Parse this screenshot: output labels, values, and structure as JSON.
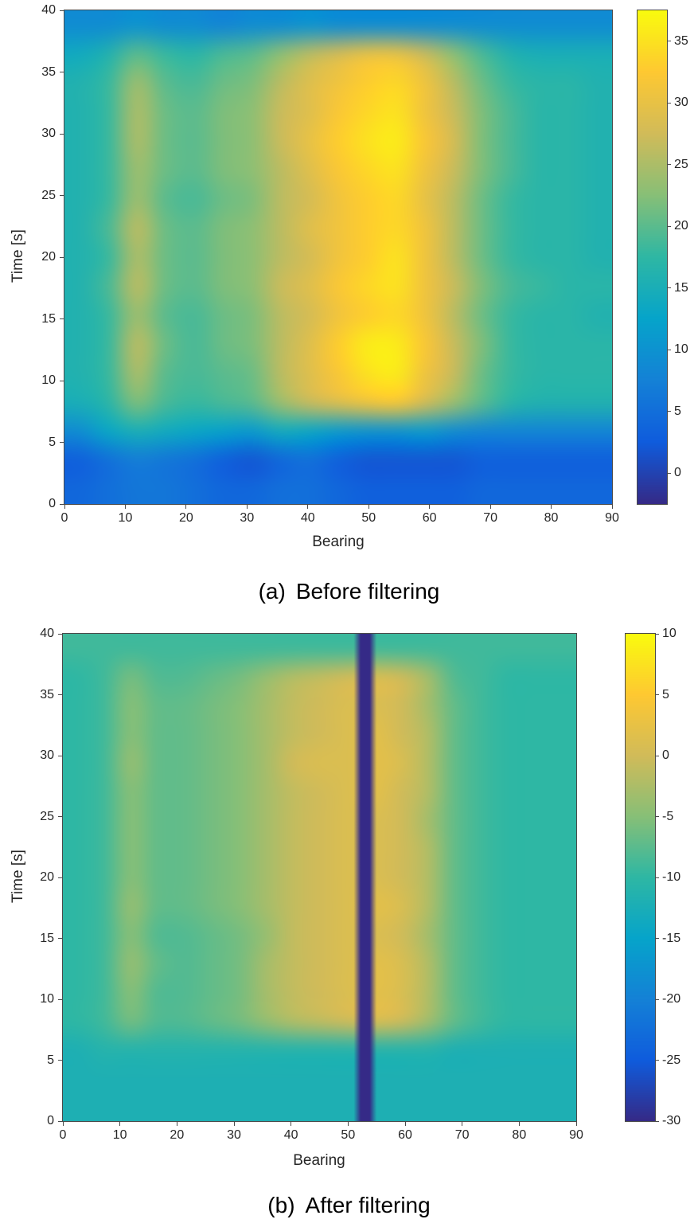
{
  "figure": {
    "captions": [
      {
        "tag": "(a)",
        "text": "Before filtering"
      },
      {
        "tag": "(b)",
        "text": "After filtering"
      }
    ]
  },
  "colormap": {
    "name": "parula",
    "stops": [
      "#352a87",
      "#0f5cdd",
      "#1481d6",
      "#06a4ca",
      "#2eb7a4",
      "#87bf77",
      "#d1bb59",
      "#fec832",
      "#f9fb0e"
    ]
  },
  "chart_data": [
    {
      "type": "heatmap",
      "title": "",
      "xlabel": "Bearing",
      "ylabel": "Time [s]",
      "x_range": [
        0,
        90
      ],
      "y_range": [
        0,
        40
      ],
      "x_ticks": [
        0,
        10,
        20,
        30,
        40,
        50,
        60,
        70,
        80,
        90
      ],
      "y_ticks": [
        0,
        5,
        10,
        15,
        20,
        25,
        30,
        35,
        40
      ],
      "clim": [
        -2.5,
        37.5
      ],
      "colorbar_ticks": [
        0,
        5,
        10,
        15,
        20,
        25,
        30,
        35
      ],
      "x": [
        0,
        5,
        10,
        15,
        20,
        25,
        30,
        35,
        40,
        45,
        50,
        55,
        60,
        65,
        70,
        75,
        80,
        85,
        90
      ],
      "y": [
        0,
        2.5,
        5,
        7.5,
        10,
        12.5,
        15,
        17.5,
        20,
        22.5,
        25,
        27.5,
        30,
        32.5,
        35,
        37.5,
        40
      ],
      "values": [
        [
          4,
          5,
          6,
          6,
          5,
          4,
          4,
          5,
          5,
          4,
          3,
          3,
          3,
          3,
          4,
          4,
          4,
          4,
          4
        ],
        [
          3,
          5,
          7,
          6,
          5,
          3,
          2,
          4,
          5,
          3,
          2,
          2,
          2,
          2,
          3,
          3,
          3,
          3,
          3
        ],
        [
          9,
          13,
          15,
          14,
          13,
          12,
          11,
          14,
          13,
          11,
          10,
          10,
          11,
          9,
          8,
          8,
          8,
          8,
          8
        ],
        [
          15,
          17,
          22,
          19,
          18,
          19,
          20,
          24,
          27,
          29,
          31,
          32,
          28,
          24,
          20,
          17,
          16,
          16,
          16
        ],
        [
          16,
          18,
          25,
          20,
          19,
          20,
          21,
          26,
          29,
          32,
          35,
          36,
          31,
          27,
          21,
          18,
          17,
          17,
          17
        ],
        [
          16,
          18,
          26,
          21,
          19,
          21,
          22,
          26,
          29,
          33,
          36,
          36,
          32,
          27,
          22,
          18,
          17,
          17,
          17
        ],
        [
          16,
          18,
          24,
          20,
          19,
          21,
          22,
          26,
          28,
          31,
          33,
          34,
          31,
          26,
          21,
          18,
          17,
          17,
          16
        ],
        [
          16,
          19,
          26,
          21,
          20,
          22,
          23,
          27,
          29,
          32,
          34,
          35,
          31,
          27,
          22,
          19,
          18,
          17,
          17
        ],
        [
          16,
          18,
          25,
          21,
          20,
          22,
          23,
          26,
          28,
          31,
          33,
          35,
          31,
          26,
          21,
          18,
          17,
          17,
          16
        ],
        [
          16,
          19,
          26,
          21,
          20,
          22,
          23,
          26,
          29,
          31,
          33,
          34,
          31,
          26,
          21,
          18,
          17,
          17,
          16
        ],
        [
          16,
          18,
          24,
          20,
          19,
          21,
          22,
          26,
          28,
          31,
          33,
          34,
          30,
          26,
          21,
          18,
          17,
          17,
          16
        ],
        [
          16,
          18,
          24,
          21,
          20,
          22,
          23,
          26,
          29,
          32,
          34,
          35,
          31,
          27,
          22,
          19,
          17,
          17,
          16
        ],
        [
          16,
          18,
          25,
          21,
          20,
          22,
          23,
          27,
          30,
          33,
          35,
          36,
          32,
          28,
          22,
          19,
          17,
          17,
          16
        ],
        [
          16,
          18,
          25,
          21,
          20,
          22,
          23,
          27,
          29,
          32,
          34,
          35,
          31,
          27,
          22,
          19,
          17,
          17,
          16
        ],
        [
          16,
          18,
          24,
          20,
          19,
          21,
          22,
          26,
          29,
          31,
          33,
          34,
          31,
          26,
          21,
          18,
          17,
          17,
          16
        ],
        [
          14,
          16,
          20,
          18,
          17,
          19,
          20,
          23,
          26,
          28,
          30,
          30,
          27,
          23,
          19,
          16,
          15,
          15,
          15
        ],
        [
          9,
          9,
          10,
          9,
          9,
          8,
          9,
          9,
          10,
          9,
          9,
          9,
          9,
          9,
          9,
          9,
          9,
          9,
          9
        ]
      ],
      "description": "Bearing-time intensity map before filtering: strong yellow source band near bearing 45-60 from t=7s to t=37s, secondary streak near bearing 11, dark blue low-level band below t=5s and above t=38s."
    },
    {
      "type": "heatmap",
      "title": "",
      "xlabel": "Bearing",
      "ylabel": "Time [s]",
      "x_range": [
        0,
        90
      ],
      "y_range": [
        0,
        40
      ],
      "x_ticks": [
        0,
        10,
        20,
        30,
        40,
        50,
        60,
        70,
        80,
        90
      ],
      "y_ticks": [
        0,
        5,
        10,
        15,
        20,
        25,
        30,
        35,
        40
      ],
      "clim": [
        -30,
        10
      ],
      "colorbar_ticks": [
        -30,
        -25,
        -20,
        -15,
        -10,
        -5,
        0,
        5,
        10
      ],
      "x": [
        0,
        5,
        10,
        15,
        20,
        25,
        30,
        35,
        40,
        45,
        50,
        55,
        60,
        65,
        70,
        75,
        80,
        85,
        90
      ],
      "y": [
        0,
        2.5,
        5,
        7.5,
        10,
        12.5,
        15,
        17.5,
        20,
        22.5,
        25,
        27.5,
        30,
        32.5,
        35,
        37.5,
        40
      ],
      "values": [
        [
          -12,
          -12,
          -12,
          -12,
          -12,
          -12,
          -12,
          -12,
          -12,
          -12,
          -12,
          -12,
          -12,
          -12,
          -12,
          -12,
          -12,
          -12,
          -12
        ],
        [
          -12,
          -12,
          -12,
          -12,
          -12,
          -12,
          -12,
          -12,
          -12,
          -12,
          -12,
          -12,
          -12,
          -12,
          -12,
          -12,
          -12,
          -12,
          -12
        ],
        [
          -12,
          -11,
          -11,
          -11,
          -11,
          -11,
          -11,
          -11,
          -11,
          -11,
          -11,
          -11,
          -11,
          -11,
          -12,
          -12,
          -12,
          -12,
          -12
        ],
        [
          -10,
          -9,
          -6,
          -8,
          -8,
          -7,
          -6,
          -4,
          -2,
          -1,
          0,
          1,
          0,
          -3,
          -7,
          -9,
          -10,
          -10,
          -10
        ],
        [
          -10,
          -9,
          -5,
          -8,
          -8,
          -7,
          -6,
          -3,
          -1,
          0,
          1,
          2,
          1,
          -2,
          -7,
          -9,
          -10,
          -10,
          -10
        ],
        [
          -10,
          -9,
          -4,
          -7,
          -8,
          -7,
          -6,
          -3,
          -1,
          0,
          1,
          2,
          1,
          -2,
          -7,
          -9,
          -10,
          -10,
          -10
        ],
        [
          -10,
          -9,
          -5,
          -8,
          -8,
          -7,
          -6,
          -4,
          -1,
          0,
          1,
          1,
          0,
          -3,
          -7,
          -9,
          -10,
          -10,
          -10
        ],
        [
          -10,
          -9,
          -4,
          -7,
          -7,
          -6,
          -5,
          -3,
          -1,
          0,
          1,
          2,
          1,
          -2,
          -7,
          -9,
          -10,
          -10,
          -10
        ],
        [
          -10,
          -9,
          -5,
          -7,
          -7,
          -6,
          -5,
          -3,
          -1,
          0,
          1,
          1,
          0,
          -2,
          -7,
          -9,
          -10,
          -10,
          -10
        ],
        [
          -10,
          -9,
          -5,
          -7,
          -7,
          -6,
          -5,
          -3,
          -1,
          0,
          1,
          1,
          0,
          -2,
          -7,
          -9,
          -10,
          -10,
          -10
        ],
        [
          -10,
          -9,
          -5,
          -7,
          -7,
          -6,
          -5,
          -3,
          -1,
          0,
          1,
          1,
          0,
          -3,
          -7,
          -9,
          -10,
          -10,
          -10
        ],
        [
          -10,
          -9,
          -5,
          -7,
          -7,
          -6,
          -5,
          -3,
          -1,
          0,
          1,
          2,
          0,
          -2,
          -7,
          -9,
          -10,
          -10,
          -10
        ],
        [
          -10,
          -9,
          -4,
          -7,
          -7,
          -6,
          -5,
          -3,
          0,
          1,
          1,
          2,
          1,
          -2,
          -7,
          -9,
          -10,
          -10,
          -10
        ],
        [
          -10,
          -9,
          -5,
          -7,
          -7,
          -6,
          -5,
          -3,
          -1,
          0,
          1,
          2,
          0,
          -2,
          -7,
          -9,
          -10,
          -10,
          -10
        ],
        [
          -10,
          -9,
          -5,
          -7,
          -7,
          -6,
          -5,
          -3,
          -1,
          0,
          1,
          1,
          0,
          -3,
          -7,
          -9,
          -10,
          -10,
          -10
        ],
        [
          -10,
          -9,
          -6,
          -8,
          -8,
          -7,
          -6,
          -4,
          -2,
          -1,
          0,
          1,
          0,
          -3,
          -8,
          -9,
          -10,
          -10,
          -10
        ],
        [
          -9,
          -9,
          -9,
          -9,
          -9,
          -9,
          -9,
          -9,
          -9,
          -9,
          -9,
          -9,
          -9,
          -9,
          -9,
          -9,
          -9,
          -9,
          -9
        ]
      ],
      "stripe": {
        "bearing": 53,
        "width_deg": 2,
        "value": -30
      },
      "description": "Bearing-time map after filtering: residual orange band near bearing 35-65, teal background near -10 dB, and a narrow dark-purple notch stripe at bearing ~53 spanning all times."
    }
  ]
}
